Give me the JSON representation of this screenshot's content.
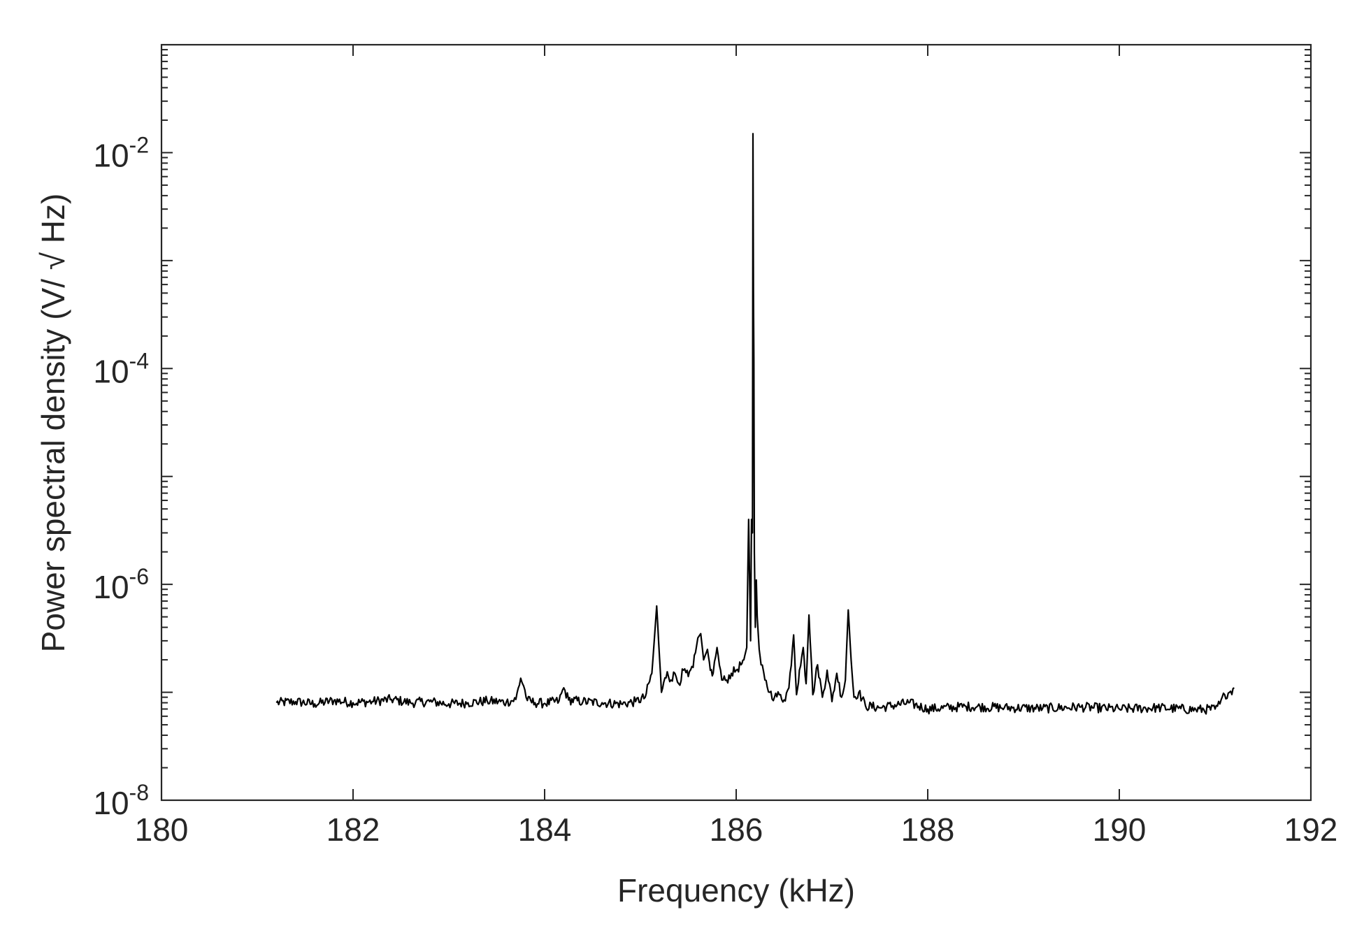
{
  "chart_data": {
    "type": "line",
    "title": "",
    "xlabel": "Frequency (kHz)",
    "ylabel": "Power spectral density (V/ √ Hz)",
    "xlim": [
      180,
      192
    ],
    "ylim": [
      1e-08,
      0.1
    ],
    "yscale": "log",
    "grid": false,
    "x_ticks": [
      {
        "value": 180,
        "label": "180"
      },
      {
        "value": 182,
        "label": "182"
      },
      {
        "value": 184,
        "label": "184"
      },
      {
        "value": 186,
        "label": "186"
      },
      {
        "value": 188,
        "label": "188"
      },
      {
        "value": 190,
        "label": "190"
      },
      {
        "value": 192,
        "label": "192"
      }
    ],
    "y_ticks": [
      {
        "value": 1e-08,
        "base": "10",
        "exp": "-8"
      },
      {
        "value": 1e-06,
        "base": "10",
        "exp": "-6"
      },
      {
        "value": 0.0001,
        "base": "10",
        "exp": "-4"
      },
      {
        "value": 0.01,
        "base": "10",
        "exp": "-2"
      }
    ],
    "series": [
      {
        "color": "#000000",
        "x": [
          181.2,
          181.4,
          181.6,
          181.8,
          182.0,
          182.2,
          182.4,
          182.6,
          182.8,
          183.0,
          183.2,
          183.4,
          183.6,
          183.7,
          183.75,
          183.78,
          183.82,
          183.9,
          184.0,
          184.15,
          184.2,
          184.25,
          184.4,
          184.6,
          184.8,
          184.95,
          185.05,
          185.12,
          185.17,
          185.19,
          185.22,
          185.28,
          185.32,
          185.36,
          185.4,
          185.45,
          185.5,
          185.55,
          185.6,
          185.63,
          185.66,
          185.7,
          185.73,
          185.76,
          185.8,
          185.85,
          185.9,
          185.95,
          186.0,
          186.05,
          186.08,
          186.11,
          186.13,
          186.15,
          186.16,
          186.17,
          186.175,
          186.18,
          186.185,
          186.19,
          186.2,
          186.21,
          186.22,
          186.24,
          186.26,
          186.3,
          186.35,
          186.4,
          186.45,
          186.5,
          186.55,
          186.6,
          186.63,
          186.66,
          186.7,
          186.73,
          186.76,
          186.8,
          186.85,
          186.9,
          186.95,
          187.0,
          187.05,
          187.1,
          187.14,
          187.17,
          187.2,
          187.23,
          187.28,
          187.35,
          187.5,
          187.8,
          188.0,
          188.4,
          188.8,
          189.2,
          189.6,
          190.0,
          190.4,
          190.8,
          191.0,
          191.05,
          191.1,
          191.15,
          191.2
        ],
        "y": [
          8e-08,
          8.2e-08,
          7.8e-08,
          8.4e-08,
          8e-08,
          8.2e-08,
          8.6e-08,
          8e-08,
          8.2e-08,
          7.8e-08,
          8e-08,
          8.3e-08,
          8.1e-08,
          8.6e-08,
          1.35e-07,
          1.15e-07,
          8.4e-08,
          8e-08,
          7.9e-08,
          8.3e-08,
          1.1e-07,
          8.5e-08,
          8.2e-08,
          8e-08,
          7.8e-08,
          8.2e-08,
          9e-08,
          1.5e-07,
          6.3e-07,
          3e-07,
          1e-07,
          1.55e-07,
          1.3e-07,
          1.5e-07,
          1.2e-07,
          1.6e-07,
          1.4e-07,
          1.7e-07,
          3.2e-07,
          3.5e-07,
          2e-07,
          2.5e-07,
          1.6e-07,
          1.5e-07,
          2.6e-07,
          1.3e-07,
          1.3e-07,
          1.5e-07,
          1.6e-07,
          1.8e-07,
          2e-07,
          2.6e-07,
          4e-06,
          3e-07,
          4e-06,
          3e-06,
          0.015,
          0.0005,
          0.00012,
          2e-06,
          4e-07,
          1.1e-06,
          5e-07,
          2.5e-07,
          1.8e-07,
          1.3e-07,
          1e-07,
          9e-08,
          9.5e-08,
          8.5e-08,
          1.1e-07,
          3.4e-07,
          9.5e-08,
          1.6e-07,
          2.6e-07,
          1.2e-07,
          5.2e-07,
          9.5e-08,
          1.8e-07,
          9e-08,
          1.6e-07,
          8.2e-08,
          1.5e-07,
          9e-08,
          1.3e-07,
          5.8e-07,
          2e-07,
          9e-08,
          1e-07,
          7.5e-08,
          7.2e-08,
          8e-08,
          7e-08,
          7.4e-08,
          7.2e-08,
          7.1e-08,
          7.3e-08,
          7e-08,
          7.2e-08,
          6.9e-08,
          7e-08,
          7.8e-08,
          9.5e-08,
          1e-07,
          1.1e-07
        ]
      }
    ]
  }
}
